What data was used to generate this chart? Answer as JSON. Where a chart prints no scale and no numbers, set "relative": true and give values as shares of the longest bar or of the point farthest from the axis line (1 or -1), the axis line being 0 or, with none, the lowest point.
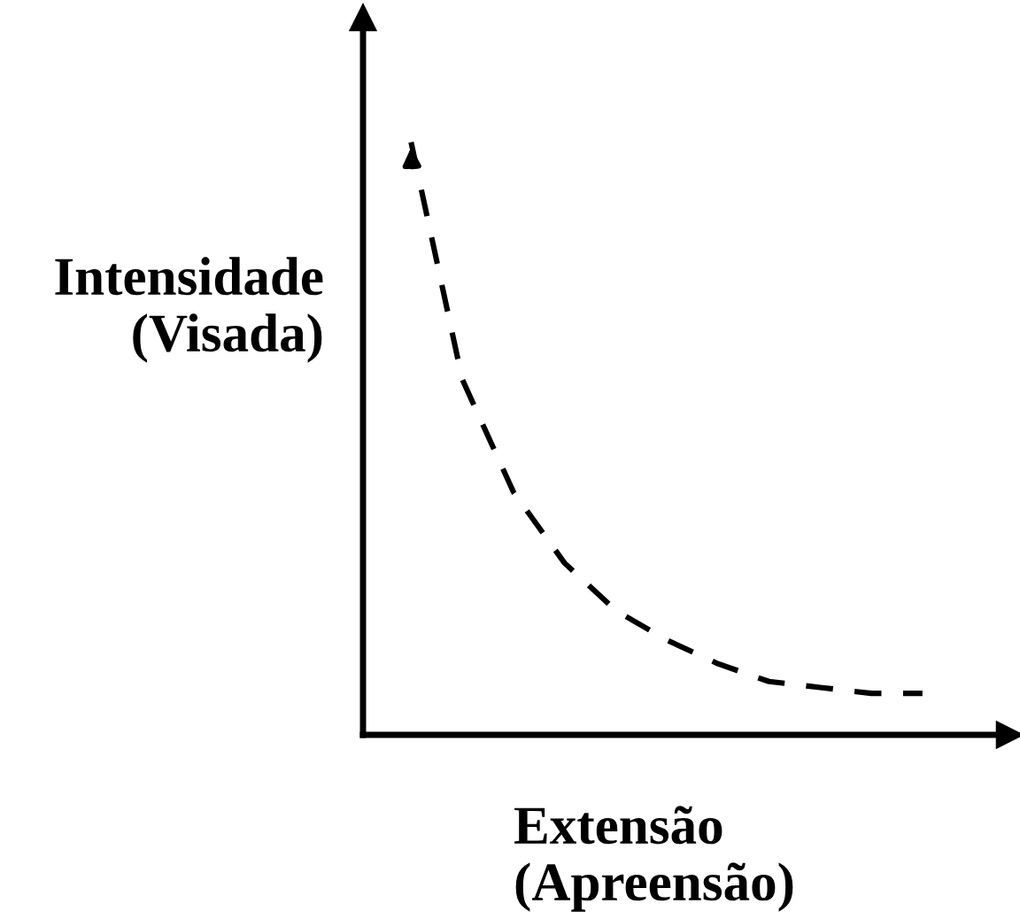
{
  "chart_data": {
    "type": "line",
    "relative": true,
    "xlabel": "Extensão\n(Apreensão)",
    "ylabel": "Intensidade\n(Visada)",
    "categories": [
      null,
      null,
      null,
      null,
      null,
      null,
      null,
      null,
      null,
      null,
      null
    ],
    "series": [
      {
        "color": "#000000",
        "line_style": "dashed",
        "values": [
          1.0,
          0.6,
          0.41,
          0.29,
          0.21,
          0.16,
          0.12,
          0.09,
          0.08,
          0.07,
          0.07
        ]
      }
    ],
    "tick_labels": false
  }
}
